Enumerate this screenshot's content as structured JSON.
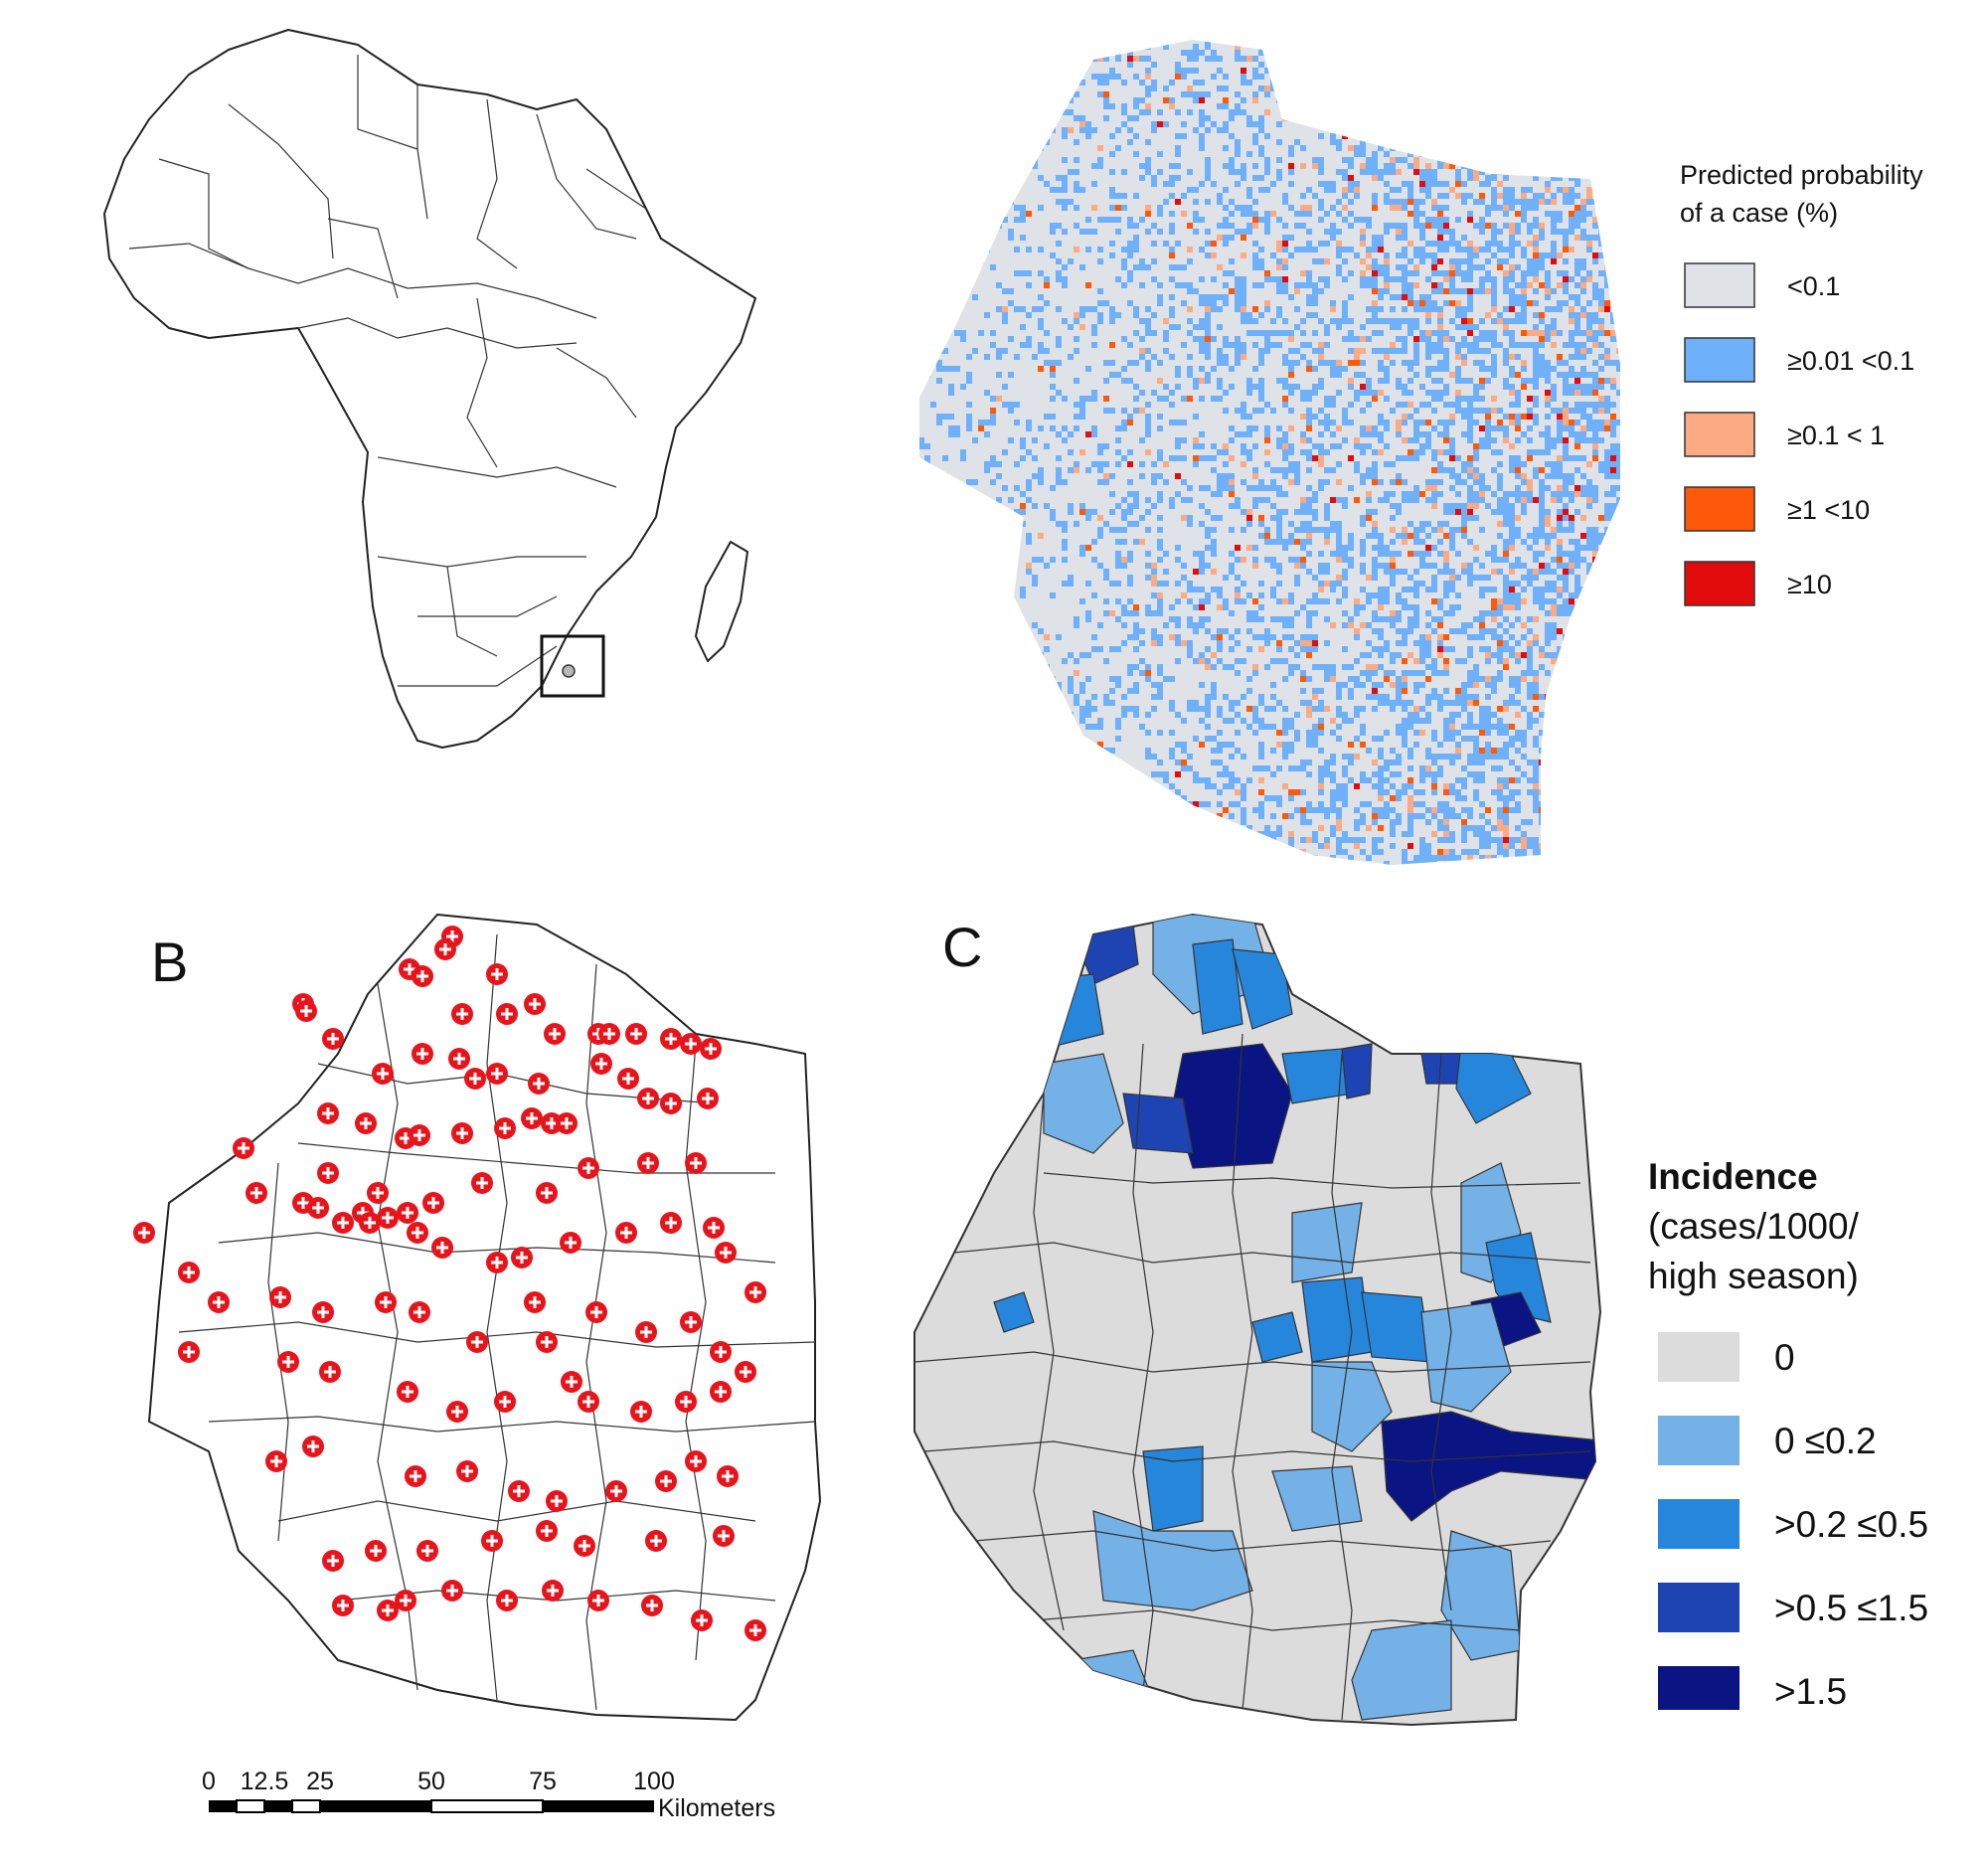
{
  "panels": {
    "b_label": "B",
    "c_label": "C"
  },
  "legend_a": {
    "title_line1": "Predicted probability",
    "title_line2": "of a case (%)",
    "items": [
      {
        "label": "<0.1",
        "color": "#dfe2e6"
      },
      {
        "label": "≥0.01 <0.1",
        "color": "#6fb0fb"
      },
      {
        "label": "≥0.1 < 1",
        "color": "#fcaa84"
      },
      {
        "label": "≥1 <10",
        "color": "#fc5a0a"
      },
      {
        "label": "≥10",
        "color": "#e30c0c"
      }
    ]
  },
  "legend_c": {
    "title": "Incidence",
    "subtitle_line1": "(cases/1000/",
    "subtitle_line2": "high season)",
    "items": [
      {
        "label": "0",
        "color": "#dcdcdc"
      },
      {
        "label": "0  ≤0.2",
        "color": "#74b1e6"
      },
      {
        "label": ">0.2 ≤0.5",
        "color": "#2686dc"
      },
      {
        "label": ">0.5 ≤1.5",
        "color": "#1e44b4"
      },
      {
        "label": ">1.5",
        "color": "#0a1482"
      }
    ]
  },
  "scale_bar": {
    "ticks": [
      "0",
      "12.5",
      "25",
      "50",
      "75",
      "100"
    ],
    "unit": "Kilometers"
  }
}
